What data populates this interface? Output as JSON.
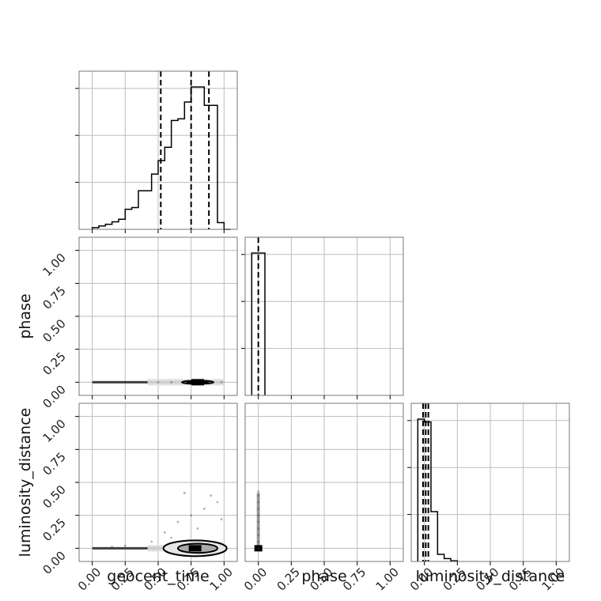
{
  "chart_data": {
    "type": "corner",
    "parameters": [
      "geocent_time",
      "phase",
      "luminosity_distance"
    ],
    "tick_labels": [
      "0.00",
      "0.25",
      "0.50",
      "0.75",
      "1.00"
    ],
    "axis_range": [
      -0.1,
      1.1
    ],
    "grid": true,
    "histograms": {
      "geocent_time": {
        "bins": [
          0.0,
          0.05,
          0.1,
          0.15,
          0.2,
          0.25,
          0.3,
          0.35,
          0.4,
          0.45,
          0.5,
          0.55,
          0.6,
          0.65,
          0.7,
          0.75,
          0.8,
          0.85,
          0.9,
          0.95,
          1.0,
          1.05
        ],
        "values": [
          0.01,
          0.02,
          0.03,
          0.045,
          0.06,
          0.12,
          0.13,
          0.23,
          0.23,
          0.33,
          0.41,
          0.49,
          0.65,
          0.66,
          0.76,
          0.85,
          0.85,
          0.74,
          0.74,
          0.04,
          0.0
        ],
        "quantile_lines": [
          0.52,
          0.75,
          0.885
        ]
      },
      "phase": {
        "bins": [
          -0.05,
          0.0,
          0.05
        ],
        "values": [
          1.0,
          1.0
        ],
        "quantile_lines": [
          0.0
        ]
      },
      "luminosity_distance": {
        "bins": [
          -0.05,
          0.0,
          0.05,
          0.1,
          0.15,
          0.2,
          0.25
        ],
        "values": [
          1.0,
          0.98,
          0.35,
          0.05,
          0.02,
          0.005
        ],
        "quantile_lines": [
          -0.01,
          0.01,
          0.03
        ]
      }
    },
    "scatter_panels": [
      {
        "x": "geocent_time",
        "y": "phase",
        "points": [
          [
            0.02,
            0.0
          ],
          [
            0.1,
            0.0
          ],
          [
            0.2,
            0.0
          ],
          [
            0.3,
            0.0
          ],
          [
            0.4,
            0.0
          ],
          [
            0.5,
            0.0
          ],
          [
            0.6,
            0.0
          ],
          [
            0.7,
            0.0
          ],
          [
            0.8,
            0.0
          ],
          [
            0.9,
            0.0
          ],
          [
            0.98,
            0.0
          ]
        ],
        "contours": [
          {
            "cx": 0.8,
            "cy": 0.0,
            "rx": 0.12,
            "ry": 0.012
          },
          {
            "cx": 0.8,
            "cy": 0.0,
            "rx": 0.08,
            "ry": 0.006
          }
        ]
      },
      {
        "x": "geocent_time",
        "y": "luminosity_distance",
        "points": [
          [
            0.05,
            0.0
          ],
          [
            0.15,
            0.01
          ],
          [
            0.25,
            0.02
          ],
          [
            0.35,
            0.0
          ],
          [
            0.45,
            0.05
          ],
          [
            0.55,
            0.12
          ],
          [
            0.65,
            0.2
          ],
          [
            0.75,
            0.25
          ],
          [
            0.85,
            0.3
          ],
          [
            0.95,
            0.35
          ],
          [
            0.7,
            0.42
          ],
          [
            0.9,
            0.4
          ],
          [
            0.6,
            0.08
          ],
          [
            0.8,
            0.15
          ],
          [
            0.98,
            0.22
          ]
        ],
        "contours": [
          {
            "cx": 0.78,
            "cy": 0.0,
            "rx": 0.24,
            "ry": 0.06
          },
          {
            "cx": 0.8,
            "cy": 0.0,
            "rx": 0.15,
            "ry": 0.035
          }
        ]
      },
      {
        "x": "phase",
        "y": "luminosity_distance",
        "points": [
          [
            0.0,
            0.0
          ],
          [
            0.0,
            0.05
          ],
          [
            0.0,
            0.1
          ],
          [
            0.0,
            0.15
          ],
          [
            0.0,
            0.2
          ],
          [
            0.0,
            0.25
          ],
          [
            0.0,
            0.3
          ],
          [
            0.0,
            0.35
          ],
          [
            0.0,
            0.4
          ],
          [
            0.0,
            0.43
          ]
        ],
        "contours": []
      }
    ]
  }
}
